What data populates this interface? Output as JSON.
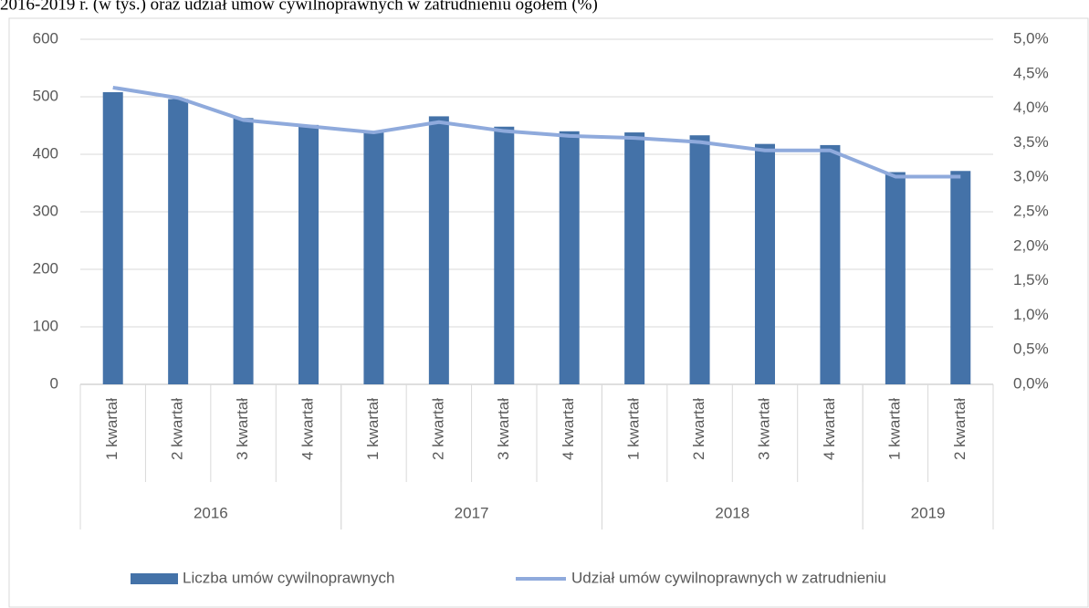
{
  "chart_data": {
    "type": "bar+line",
    "title": "2016-2019 r. (w tys.) oraz udział umów cywilnoprawnych w zatrudnieniu ogółem (%)",
    "category_groups": [
      {
        "label": "2016",
        "categories": [
          "1 kwartał",
          "2 kwartał",
          "3 kwartał",
          "4 kwartał"
        ]
      },
      {
        "label": "2017",
        "categories": [
          "1 kwartał",
          "2 kwartał",
          "3 kwartał",
          "4 kwartał"
        ]
      },
      {
        "label": "2018",
        "categories": [
          "1 kwartał",
          "2 kwartał",
          "3 kwartał",
          "4 kwartał"
        ]
      },
      {
        "label": "2019",
        "categories": [
          "1 kwartał",
          "2 kwartał"
        ]
      }
    ],
    "series": [
      {
        "name": "Liczba umów cywilnoprawnych",
        "type": "bar",
        "color": "#4472a8",
        "values": [
          508,
          496,
          463,
          451,
          440,
          466,
          448,
          440,
          438,
          433,
          418,
          416,
          369,
          371
        ]
      },
      {
        "name": "Udział umów cywilnoprawnych w zatrudnieniu",
        "type": "line",
        "color": "#8faadc",
        "axis": "y2",
        "values": [
          4.3,
          4.15,
          3.83,
          3.74,
          3.65,
          3.8,
          3.67,
          3.6,
          3.57,
          3.51,
          3.39,
          3.39,
          3.01,
          3.01
        ]
      }
    ],
    "ylim": [
      0,
      600
    ],
    "yticks": [
      0,
      100,
      200,
      300,
      400,
      500,
      600
    ],
    "y2lim": [
      0,
      5
    ],
    "y2ticks": [
      {
        "value": 0,
        "label": "0,0%"
      },
      {
        "value": 0.5,
        "label": "0,5%"
      },
      {
        "value": 1,
        "label": "1,0%"
      },
      {
        "value": 1.5,
        "label": "1,5%"
      },
      {
        "value": 2,
        "label": "2,0%"
      },
      {
        "value": 2.5,
        "label": "2,5%"
      },
      {
        "value": 3,
        "label": "3,0%"
      },
      {
        "value": 3.5,
        "label": "3,5%"
      },
      {
        "value": 4,
        "label": "4,0%"
      },
      {
        "value": 4.5,
        "label": "4,5%"
      },
      {
        "value": 5,
        "label": "5,0%"
      }
    ],
    "grid": true,
    "legend": "bottom"
  }
}
